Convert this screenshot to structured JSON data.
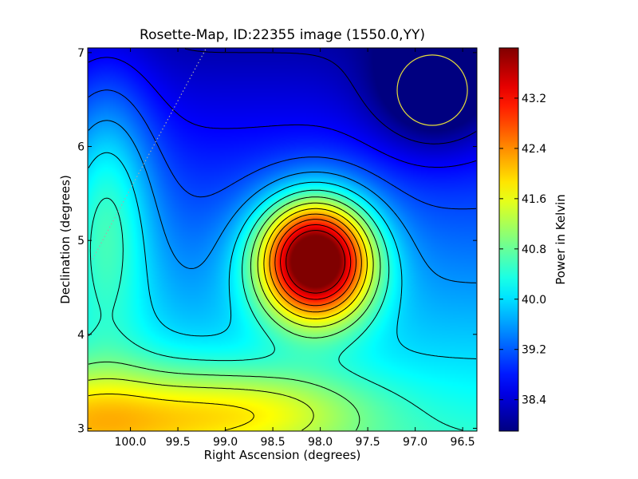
{
  "chart_data": {
    "type": "heatmap",
    "title": "Rosette-Map, ID:22355 image (1550.0,YY)",
    "xlabel": "Right Ascension (degrees)",
    "ylabel": "Declination (degrees)",
    "colorbar_label": "Power in Kelvin",
    "xlim": [
      100.45,
      96.35
    ],
    "ylim": [
      2.97,
      7.05
    ],
    "x_axis_reversed": true,
    "xticks": [
      "100.0",
      "99.5",
      "99.0",
      "98.5",
      "98.0",
      "97.5",
      "97.0",
      "96.5"
    ],
    "xtick_values": [
      100.0,
      99.5,
      99.0,
      98.5,
      98.0,
      97.5,
      97.0,
      96.5
    ],
    "yticks": [
      "3",
      "4",
      "5",
      "6",
      "7"
    ],
    "ytick_values": [
      3,
      4,
      5,
      6,
      7
    ],
    "colorbar_range": [
      37.9,
      44.0
    ],
    "colorbar_ticks": [
      "38.4",
      "39.2",
      "40.0",
      "40.8",
      "41.6",
      "42.4",
      "43.2"
    ],
    "colorbar_tick_values": [
      38.4,
      39.2,
      40.0,
      40.8,
      41.6,
      42.4,
      43.2
    ],
    "colormap": "jet",
    "contours": true,
    "components": [
      {
        "ra": 98.05,
        "dec": 4.8,
        "amplitude": 5.5,
        "sigma_ra": 0.42,
        "sigma_dec": 0.45
      },
      {
        "ra": 96.8,
        "dec": 6.6,
        "amplitude": -1.2,
        "sigma_ra": 0.45,
        "sigma_dec": 0.45
      },
      {
        "ra": 100.25,
        "dec": 5.4,
        "amplitude": 1.4,
        "sigma_ra": 0.35,
        "sigma_dec": 1.0
      },
      {
        "ra": 100.4,
        "dec": 3.1,
        "amplitude": 1.7,
        "sigma_ra": 1.2,
        "sigma_dec": 0.4
      },
      {
        "ra": 98.5,
        "dec": 3.2,
        "amplitude": 0.9,
        "sigma_ra": 0.8,
        "sigma_dec": 0.3
      }
    ],
    "base_level": 39.3,
    "dec_gradient": -0.55,
    "circle_marker": {
      "ra": 96.82,
      "dec": 6.6,
      "radius_deg": 0.37,
      "color": "#e5dc3a"
    },
    "dotted_line": {
      "ra_start": 100.4,
      "dec_start": 4.8,
      "ra_end": 99.2,
      "dec_end": 7.05,
      "color": "#aaaaaa"
    }
  }
}
